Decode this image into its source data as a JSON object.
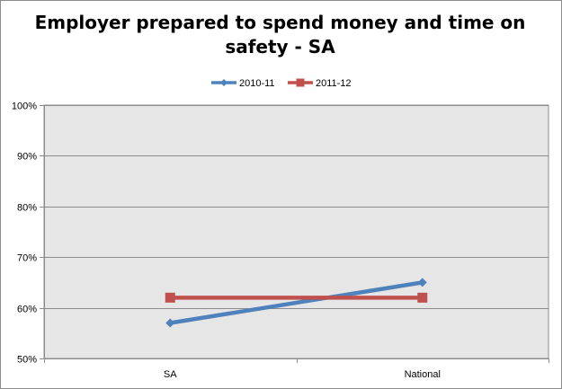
{
  "chart_data": {
    "type": "line",
    "title_lines": [
      "Employer prepared to spend money and time on",
      "safety - SA"
    ],
    "categories": [
      "SA",
      "National"
    ],
    "series": [
      {
        "name": "2010-11",
        "values": [
          0.57,
          0.65
        ],
        "color": "#4F81BD",
        "marker": "diamond"
      },
      {
        "name": "2011-12",
        "values": [
          0.62,
          0.62
        ],
        "color": "#C0504D",
        "marker": "square"
      }
    ],
    "ylim": [
      0.5,
      1.0
    ],
    "yticks": [
      "50%",
      "60%",
      "70%",
      "80%",
      "90%",
      "100%"
    ],
    "grid": true,
    "legend_position": "top",
    "plot_background": "#E6E6E6"
  }
}
